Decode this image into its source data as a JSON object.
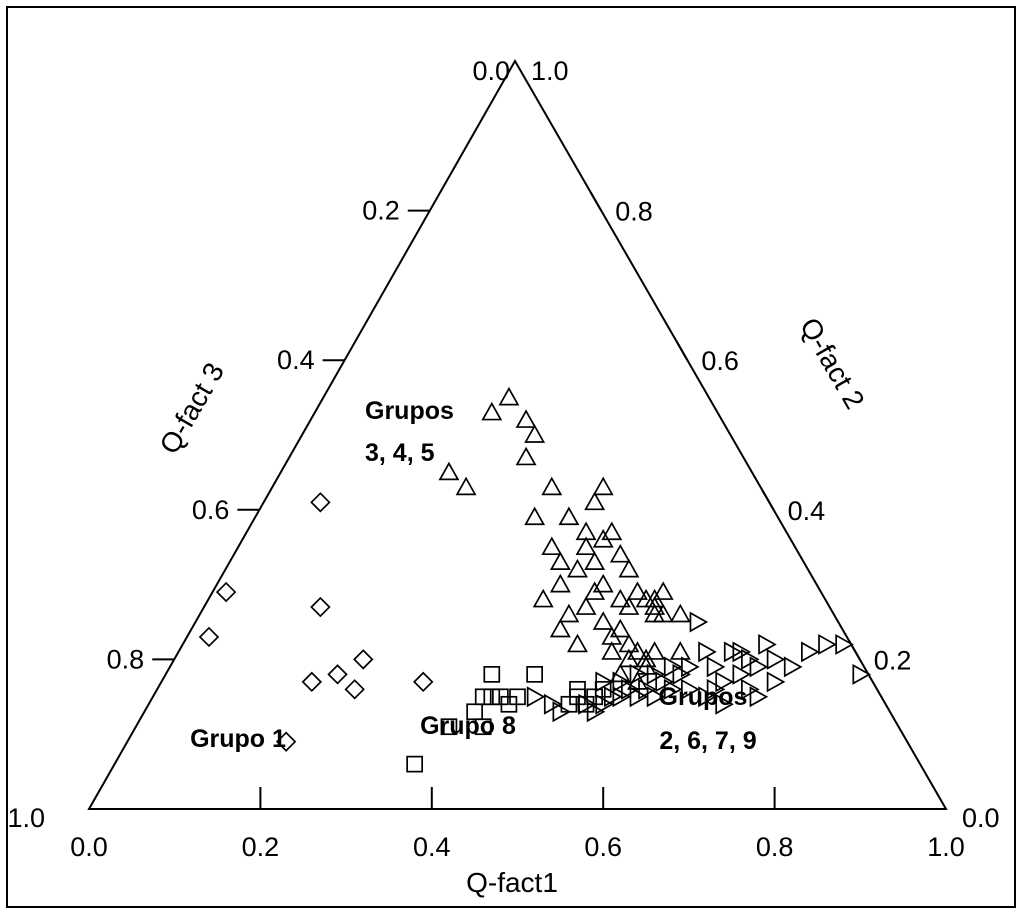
{
  "chart_data": {
    "type": "ternary-scatter",
    "axes": {
      "bottom": {
        "label": "Q-fact1",
        "ticks": [
          "0.0",
          "0.2",
          "0.4",
          "0.6",
          "0.8",
          "1.0"
        ]
      },
      "left": {
        "label": "Q-fact 3",
        "ticks": [
          "1.0",
          "0.8",
          "0.6",
          "0.4",
          "0.2",
          "0.0"
        ]
      },
      "right": {
        "label": "Q-fact 2",
        "ticks": [
          "0.0",
          "0.2",
          "0.4",
          "0.6",
          "0.8",
          "1.0"
        ]
      }
    },
    "group_labels": [
      {
        "lines": [
          "Grupo 1"
        ],
        "anchor": "grupo1"
      },
      {
        "lines": [
          "Grupo 8"
        ],
        "anchor": "grupo8"
      },
      {
        "lines": [
          "Grupos",
          "3, 4, 5"
        ],
        "anchor": "grupos345"
      },
      {
        "lines": [
          "Grupos",
          "2, 6, 7, 9"
        ],
        "anchor": "grupos2679"
      }
    ],
    "series": [
      {
        "marker": "diamond",
        "points": [
          [
            0.14,
            0.23
          ],
          [
            0.16,
            0.29
          ],
          [
            0.23,
            0.09
          ],
          [
            0.27,
            0.41
          ],
          [
            0.27,
            0.27
          ],
          [
            0.26,
            0.17
          ],
          [
            0.29,
            0.18
          ],
          [
            0.32,
            0.2
          ],
          [
            0.31,
            0.16
          ],
          [
            0.39,
            0.17
          ]
        ]
      },
      {
        "marker": "square",
        "points": [
          [
            0.38,
            0.06
          ],
          [
            0.42,
            0.11
          ],
          [
            0.46,
            0.11
          ],
          [
            0.45,
            0.13
          ],
          [
            0.46,
            0.15
          ],
          [
            0.47,
            0.15
          ],
          [
            0.48,
            0.15
          ],
          [
            0.49,
            0.14
          ],
          [
            0.5,
            0.15
          ],
          [
            0.47,
            0.18
          ],
          [
            0.52,
            0.18
          ],
          [
            0.56,
            0.14
          ],
          [
            0.57,
            0.15
          ],
          [
            0.58,
            0.14
          ],
          [
            0.57,
            0.16
          ],
          [
            0.59,
            0.15
          ],
          [
            0.6,
            0.16
          ]
        ]
      },
      {
        "marker": "triangle-up",
        "points": [
          [
            0.42,
            0.45
          ],
          [
            0.44,
            0.43
          ],
          [
            0.47,
            0.53
          ],
          [
            0.49,
            0.55
          ],
          [
            0.51,
            0.52
          ],
          [
            0.52,
            0.5
          ],
          [
            0.51,
            0.47
          ],
          [
            0.54,
            0.43
          ],
          [
            0.52,
            0.39
          ],
          [
            0.56,
            0.39
          ],
          [
            0.54,
            0.35
          ],
          [
            0.55,
            0.33
          ],
          [
            0.57,
            0.32
          ],
          [
            0.58,
            0.37
          ],
          [
            0.59,
            0.41
          ],
          [
            0.6,
            0.43
          ],
          [
            0.61,
            0.37
          ],
          [
            0.58,
            0.35
          ],
          [
            0.59,
            0.33
          ],
          [
            0.62,
            0.34
          ],
          [
            0.63,
            0.32
          ],
          [
            0.62,
            0.28
          ],
          [
            0.64,
            0.29
          ],
          [
            0.65,
            0.28
          ],
          [
            0.66,
            0.28
          ],
          [
            0.63,
            0.27
          ],
          [
            0.66,
            0.26
          ],
          [
            0.67,
            0.29
          ],
          [
            0.69,
            0.26
          ],
          [
            0.6,
            0.25
          ],
          [
            0.61,
            0.23
          ],
          [
            0.62,
            0.24
          ],
          [
            0.63,
            0.22
          ],
          [
            0.64,
            0.21
          ],
          [
            0.65,
            0.2
          ],
          [
            0.66,
            0.21
          ],
          [
            0.61,
            0.21
          ],
          [
            0.63,
            0.2
          ],
          [
            0.62,
            0.18
          ],
          [
            0.64,
            0.17
          ],
          [
            0.65,
            0.19
          ],
          [
            0.66,
            0.27
          ],
          [
            0.67,
            0.26
          ],
          [
            0.6,
            0.3
          ],
          [
            0.58,
            0.27
          ],
          [
            0.56,
            0.26
          ],
          [
            0.55,
            0.24
          ],
          [
            0.57,
            0.22
          ],
          [
            0.59,
            0.29
          ],
          [
            0.53,
            0.28
          ],
          [
            0.55,
            0.3
          ],
          [
            0.6,
            0.36
          ],
          [
            0.69,
            0.21
          ]
        ]
      },
      {
        "marker": "triangle-right",
        "points": [
          [
            0.52,
            0.15
          ],
          [
            0.54,
            0.14
          ],
          [
            0.55,
            0.13
          ],
          [
            0.58,
            0.14
          ],
          [
            0.6,
            0.14
          ],
          [
            0.62,
            0.15
          ],
          [
            0.64,
            0.15
          ],
          [
            0.66,
            0.15
          ],
          [
            0.68,
            0.16
          ],
          [
            0.7,
            0.16
          ],
          [
            0.72,
            0.15
          ],
          [
            0.74,
            0.17
          ],
          [
            0.76,
            0.18
          ],
          [
            0.77,
            0.2
          ],
          [
            0.78,
            0.19
          ],
          [
            0.8,
            0.2
          ],
          [
            0.82,
            0.19
          ],
          [
            0.84,
            0.21
          ],
          [
            0.88,
            0.22
          ],
          [
            0.86,
            0.22
          ],
          [
            0.9,
            0.18
          ],
          [
            0.79,
            0.22
          ],
          [
            0.76,
            0.21
          ],
          [
            0.7,
            0.19
          ],
          [
            0.72,
            0.21
          ],
          [
            0.73,
            0.19
          ],
          [
            0.68,
            0.19
          ],
          [
            0.66,
            0.18
          ],
          [
            0.64,
            0.18
          ],
          [
            0.62,
            0.17
          ],
          [
            0.6,
            0.17
          ],
          [
            0.67,
            0.17
          ],
          [
            0.69,
            0.18
          ],
          [
            0.65,
            0.16
          ],
          [
            0.63,
            0.16
          ],
          [
            0.61,
            0.15
          ],
          [
            0.59,
            0.13
          ],
          [
            0.73,
            0.16
          ],
          [
            0.77,
            0.16
          ],
          [
            0.8,
            0.17
          ],
          [
            0.71,
            0.25
          ],
          [
            0.74,
            0.14
          ],
          [
            0.78,
            0.15
          ],
          [
            0.75,
            0.21
          ]
        ]
      }
    ]
  }
}
